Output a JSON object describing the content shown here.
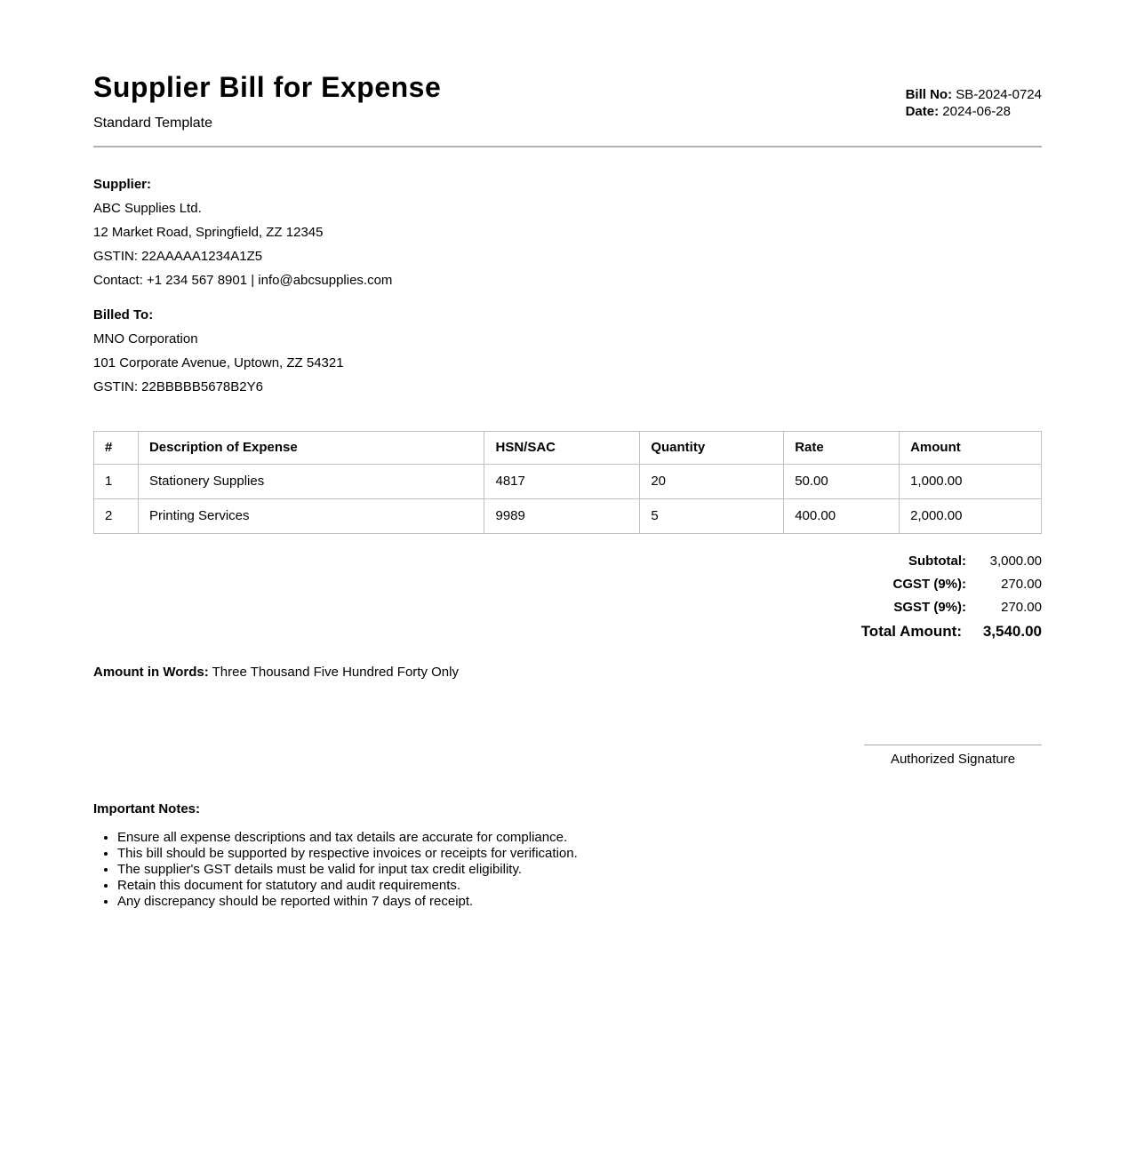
{
  "header": {
    "title": "Supplier Bill for Expense",
    "subtitle": "Standard Template",
    "bill_no_label": "Bill No:",
    "bill_no": "SB-2024-0724",
    "date_label": "Date:",
    "date": "2024-06-28"
  },
  "supplier": {
    "heading": "Supplier:",
    "name": "ABC Supplies Ltd.",
    "address": "12 Market Road, Springfield, ZZ 12345",
    "gstin": "GSTIN: 22AAAAA1234A1Z5",
    "contact": "Contact: +1 234 567 8901 | info@abcsupplies.com"
  },
  "billed_to": {
    "heading": "Billed To:",
    "name": "MNO Corporation",
    "address": "101 Corporate Avenue, Uptown, ZZ 54321",
    "gstin": "GSTIN: 22BBBBB5678B2Y6"
  },
  "items_table": {
    "headers": [
      "#",
      "Description of Expense",
      "HSN/SAC",
      "Quantity",
      "Rate",
      "Amount"
    ],
    "rows": [
      [
        "1",
        "Stationery Supplies",
        "4817",
        "20",
        "50.00",
        "1,000.00"
      ],
      [
        "2",
        "Printing Services",
        "9989",
        "5",
        "400.00",
        "2,000.00"
      ]
    ]
  },
  "totals": {
    "rows": [
      {
        "label": "Subtotal:",
        "value": "3,000.00"
      },
      {
        "label": "CGST (9%):",
        "value": "270.00"
      },
      {
        "label": "SGST (9%):",
        "value": "270.00"
      }
    ],
    "total_label": "Total Amount:",
    "total_value": "3,540.00"
  },
  "amount_in_words": {
    "label": "Amount in Words:",
    "text": "Three Thousand Five Hundred Forty Only"
  },
  "signature": {
    "label": "Authorized Signature"
  },
  "notes": {
    "heading": "Important Notes:",
    "items": [
      "Ensure all expense descriptions and tax details are accurate for compliance.",
      "This bill should be supported by respective invoices or receipts for verification.",
      "The supplier's GST details must be valid for input tax credit eligibility.",
      "Retain this document for statutory and audit requirements.",
      "Any discrepancy should be reported within 7 days of receipt."
    ]
  }
}
